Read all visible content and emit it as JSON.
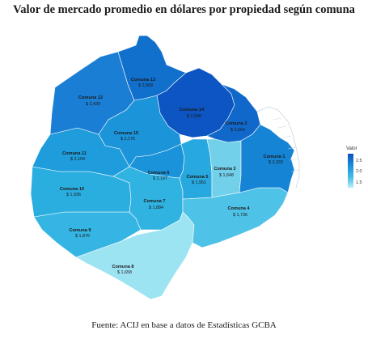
{
  "title": "Valor de mercado promedio en dólares por propiedad según comuna",
  "source": "Fuente: ACIJ en base a datos de Estadísticas GCBA",
  "legend": {
    "title": "Valor",
    "ticks": [
      "2.5",
      "2.0",
      "1.5"
    ],
    "colors": [
      "#0f5fc8",
      "#1a96db",
      "#5fc7e8",
      "#aee9f4"
    ]
  },
  "comunas": [
    {
      "id": "c13",
      "label": "Comuna 13",
      "value": "$ 2,568",
      "color": "#1170cc"
    },
    {
      "id": "c12",
      "label": "Comuna 12",
      "value": "$ 2,439",
      "color": "#1a7ed4"
    },
    {
      "id": "c14",
      "label": "Comuna 14",
      "value": "$ 2,908",
      "color": "#0d55c2"
    },
    {
      "id": "c2",
      "label": "Comuna 2",
      "value": "$ 2,664",
      "color": "#1168cb"
    },
    {
      "id": "c15",
      "label": "Comuna 15",
      "value": "$ 2,176",
      "color": "#1c94d9"
    },
    {
      "id": "c11",
      "label": "Comuna 11",
      "value": "$ 2,104",
      "color": "#1f9cdc"
    },
    {
      "id": "c1",
      "label": "Comuna 1",
      "value": "$ 2,333",
      "color": "#1684d5"
    },
    {
      "id": "c6",
      "label": "Comuna 6",
      "value": "$ 2,197",
      "color": "#1b93da"
    },
    {
      "id": "c5",
      "label": "Comuna 5",
      "value": "$ 1,951",
      "color": "#27a8df"
    },
    {
      "id": "c3",
      "label": "Comuna 3",
      "value": "$ 1,648",
      "color": "#72d0ea"
    },
    {
      "id": "c10",
      "label": "Comuna 10",
      "value": "$ 1,936",
      "color": "#2aaee0"
    },
    {
      "id": "c7",
      "label": "Comuna 7",
      "value": "$ 1,884",
      "color": "#31b3e2"
    },
    {
      "id": "c4",
      "label": "Comuna 4",
      "value": "$ 1,736",
      "color": "#4fc3e7"
    },
    {
      "id": "c9",
      "label": "Comuna 9",
      "value": "$ 1,876",
      "color": "#35b5e3"
    },
    {
      "id": "c8",
      "label": "Comuna 8",
      "value": "$ 1,658",
      "color": "#9de4f2"
    }
  ]
}
